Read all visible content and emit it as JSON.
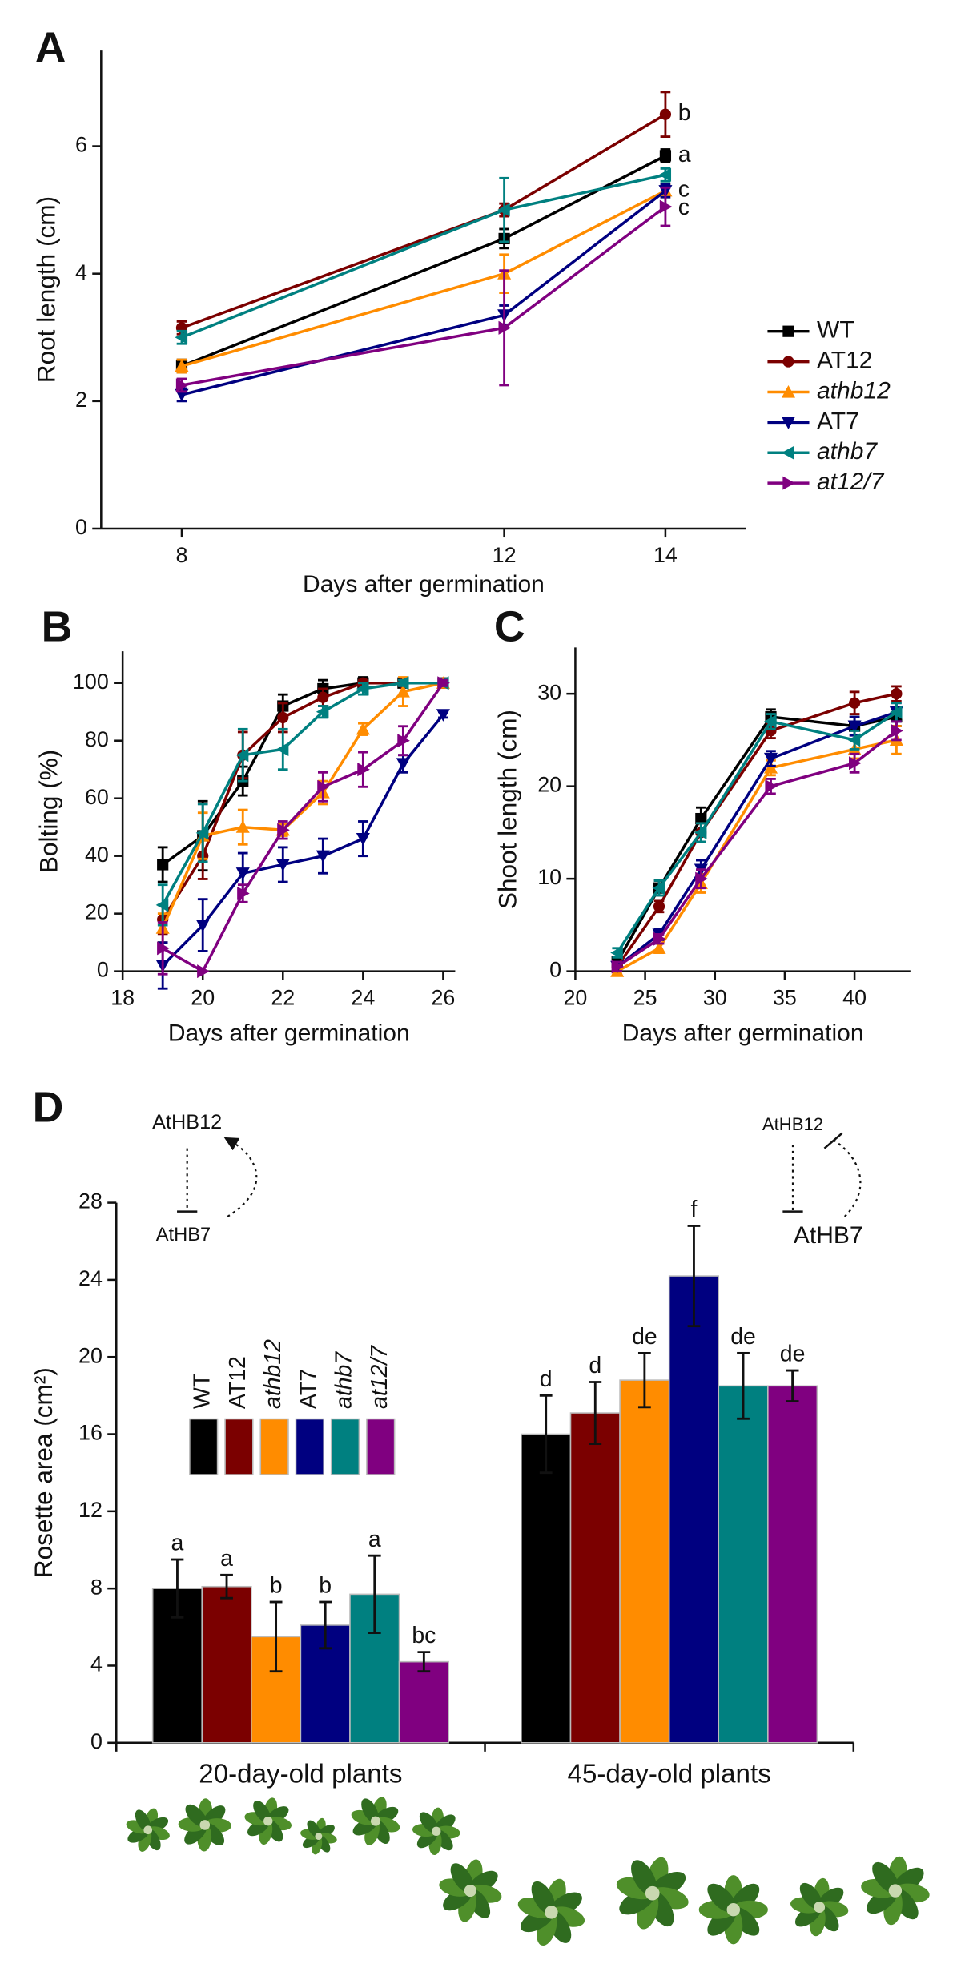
{
  "chart_data": [
    {
      "type": "line",
      "panel": "A",
      "x_label": "Days after germination",
      "y_label": "Root length (cm)",
      "x": [
        8,
        12,
        14
      ],
      "xlim": [
        7,
        15
      ],
      "xticks": [
        8,
        12,
        14
      ],
      "ylim": [
        0,
        7.5
      ],
      "yticks": [
        0,
        2,
        4,
        6
      ],
      "series": [
        {
          "name": "WT",
          "color": "#000000",
          "marker": "square",
          "italic": false,
          "values": [
            2.55,
            4.55,
            5.85
          ],
          "errors": [
            0.1,
            0.15,
            0.1
          ]
        },
        {
          "name": "AT12",
          "color": "#7b0000",
          "marker": "circle",
          "italic": false,
          "values": [
            3.15,
            5.0,
            6.5
          ],
          "errors": [
            0.1,
            0.1,
            0.35
          ]
        },
        {
          "name": "athb12",
          "color": "#ff8c00",
          "marker": "triangle-up",
          "italic": true,
          "values": [
            2.55,
            4.0,
            5.3
          ],
          "errors": [
            0.1,
            0.3,
            0.1
          ]
        },
        {
          "name": "AT7",
          "color": "#000080",
          "marker": "triangle-down",
          "italic": false,
          "values": [
            2.1,
            3.35,
            5.3
          ],
          "errors": [
            0.1,
            0.15,
            0.1
          ]
        },
        {
          "name": "athb7",
          "color": "#008080",
          "marker": "triangle-left",
          "italic": true,
          "values": [
            3.0,
            5.0,
            5.55
          ],
          "errors": [
            0.1,
            0.5,
            0.1
          ]
        },
        {
          "name": "at12/7",
          "color": "#800080",
          "marker": "triangle-right",
          "italic": true,
          "values": [
            2.25,
            3.15,
            5.05
          ],
          "errors": [
            0.1,
            0.9,
            0.3
          ]
        }
      ],
      "annotations": [
        {
          "text": "b",
          "x": 14,
          "y": 6.5
        },
        {
          "text": "a",
          "x": 14,
          "y": 5.85
        },
        {
          "text": "c",
          "x": 14,
          "y": 5.3
        },
        {
          "text": "c",
          "x": 14,
          "y": 5.02
        }
      ],
      "legend": true
    },
    {
      "type": "line",
      "panel": "B",
      "x_label": "Days after germination",
      "y_label": "Bolting (%)",
      "x": [
        19,
        20,
        21,
        22,
        23,
        24,
        25,
        26
      ],
      "xlim": [
        18,
        26.3
      ],
      "xticks": [
        18,
        20,
        22,
        24,
        26
      ],
      "ylim": [
        0,
        111
      ],
      "yticks": [
        0,
        20,
        40,
        60,
        80,
        100
      ],
      "series": [
        {
          "name": "WT",
          "color": "#000000",
          "marker": "square",
          "values": [
            37,
            47,
            66,
            92,
            98,
            100,
            100,
            100
          ],
          "errors": [
            6,
            12,
            5,
            4,
            3,
            2,
            1,
            1
          ]
        },
        {
          "name": "AT12",
          "color": "#7b0000",
          "marker": "circle",
          "values": [
            18,
            40,
            75,
            88,
            95,
            100,
            100,
            100
          ],
          "errors": [
            5,
            8,
            8,
            5,
            3,
            1,
            1,
            1
          ]
        },
        {
          "name": "athb12",
          "color": "#ff8c00",
          "marker": "triangle-up",
          "values": [
            15,
            47,
            50,
            49,
            62,
            84,
            97,
            100
          ],
          "errors": [
            5,
            8,
            6,
            2,
            4,
            2,
            5,
            1
          ]
        },
        {
          "name": "AT7",
          "color": "#000080",
          "marker": "triangle-down",
          "values": [
            2,
            16,
            34,
            37,
            40,
            46,
            72,
            89
          ],
          "errors": [
            8,
            9,
            7,
            6,
            6,
            6,
            3,
            1
          ]
        },
        {
          "name": "athb7",
          "color": "#008080",
          "marker": "triangle-left",
          "values": [
            23,
            48,
            75,
            77,
            90,
            98,
            100,
            100
          ],
          "errors": [
            7,
            10,
            9,
            7,
            2,
            2,
            1,
            1
          ]
        },
        {
          "name": "at12/7",
          "color": "#800080",
          "marker": "triangle-right",
          "values": [
            8,
            0,
            27,
            49,
            64,
            70,
            80,
            100
          ],
          "errors": [
            9,
            0,
            3,
            3,
            5,
            6,
            5,
            1
          ]
        }
      ]
    },
    {
      "type": "line",
      "panel": "C",
      "x_label": "Days after germination",
      "y_label": "Shoot length (cm)",
      "x": [
        23,
        26,
        29,
        34,
        40,
        43
      ],
      "xlim": [
        20,
        44
      ],
      "xticks": [
        20,
        25,
        30,
        35,
        40
      ],
      "ylim": [
        0,
        35
      ],
      "yticks": [
        0,
        10,
        20,
        30
      ],
      "series": [
        {
          "name": "WT",
          "color": "#000000",
          "marker": "square",
          "values": [
            1,
            9,
            16.5,
            27.5,
            26.5,
            27.5
          ],
          "errors": [
            0.5,
            0.8,
            1.2,
            0.8,
            1,
            1
          ]
        },
        {
          "name": "AT12",
          "color": "#7b0000",
          "marker": "circle",
          "values": [
            0.5,
            7,
            15,
            26,
            29,
            30
          ],
          "errors": [
            0.5,
            0.6,
            1,
            0.8,
            1.2,
            0.8
          ]
        },
        {
          "name": "athb12",
          "color": "#ff8c00",
          "marker": "triangle-up",
          "values": [
            0,
            2.5,
            9.5,
            22,
            24,
            25
          ],
          "errors": [
            0.3,
            0.5,
            1,
            0.8,
            1,
            1.5
          ]
        },
        {
          "name": "AT7",
          "color": "#000080",
          "marker": "triangle-down",
          "values": [
            0.5,
            4,
            11,
            23,
            26.5,
            28
          ],
          "errors": [
            0.5,
            0.6,
            1,
            0.8,
            1,
            1
          ]
        },
        {
          "name": "athb7",
          "color": "#008080",
          "marker": "triangle-left",
          "values": [
            2,
            9,
            15,
            27,
            25,
            28
          ],
          "errors": [
            0.5,
            0.8,
            1,
            0.8,
            1,
            1
          ]
        },
        {
          "name": "at12/7",
          "color": "#800080",
          "marker": "triangle-right",
          "values": [
            0.5,
            3.5,
            10,
            20,
            22.5,
            26
          ],
          "errors": [
            0.5,
            0.5,
            1,
            0.8,
            1,
            1
          ]
        }
      ]
    },
    {
      "type": "bar",
      "panel": "D",
      "y_label": "Rosette area (cm²)",
      "categories": [
        "20-day-old plants",
        "45-day-old plants"
      ],
      "ylim": [
        0,
        28
      ],
      "yticks": [
        0,
        4,
        8,
        12,
        16,
        20,
        24,
        28
      ],
      "series": [
        {
          "name": "WT",
          "color": "#000000",
          "italic": false,
          "values": [
            8,
            16
          ],
          "errors": [
            1.5,
            2
          ],
          "letters": [
            "a",
            "d"
          ]
        },
        {
          "name": "AT12",
          "color": "#7b0000",
          "italic": false,
          "values": [
            8.1,
            17.1
          ],
          "errors": [
            0.6,
            1.6
          ],
          "letters": [
            "a",
            "d"
          ]
        },
        {
          "name": "athb12",
          "color": "#ff8c00",
          "italic": true,
          "values": [
            5.5,
            18.8
          ],
          "errors": [
            1.8,
            1.4
          ],
          "letters": [
            "b",
            "de"
          ]
        },
        {
          "name": "AT7",
          "color": "#000080",
          "italic": false,
          "values": [
            6.1,
            24.2
          ],
          "errors": [
            1.2,
            2.6
          ],
          "letters": [
            "b",
            "f"
          ]
        },
        {
          "name": "athb7",
          "color": "#008080",
          "italic": true,
          "values": [
            7.7,
            18.5
          ],
          "errors": [
            2,
            1.7
          ],
          "letters": [
            "a",
            "de"
          ]
        },
        {
          "name": "at12/7",
          "color": "#800080",
          "italic": true,
          "values": [
            4.2,
            18.5
          ],
          "errors": [
            0.5,
            0.8
          ],
          "letters": [
            "bc",
            "de"
          ]
        }
      ],
      "schematic_labels": [
        "AtHB12",
        "AtHB7",
        "AtHB12",
        "AtHB7"
      ],
      "legend": true
    }
  ]
}
